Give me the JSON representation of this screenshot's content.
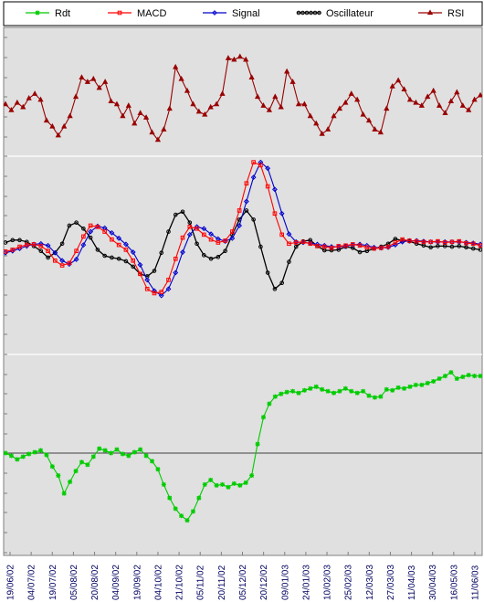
{
  "chart_data": {
    "type": "line",
    "title": "",
    "xlabel": "",
    "ylabel": "",
    "grid": true,
    "legend_position": "top",
    "colors": {
      "Rdt": "#00cc00",
      "MACD": "#ff0000",
      "Signal": "#0000cc",
      "Oscillateur": "#000000",
      "RSI": "#990000",
      "plot_background": "#e0e0e0",
      "tick_label": "#000060"
    },
    "x_tick_labels": [
      "19/06/02",
      "04/07/02",
      "19/07/02",
      "05/08/02",
      "20/08/02",
      "04/09/02",
      "19/09/02",
      "04/10/02",
      "21/10/02",
      "05/11/02",
      "20/11/02",
      "05/12/02",
      "20/12/02",
      "09/01/03",
      "24/01/03",
      "10/02/03",
      "25/02/03",
      "12/03/03",
      "27/03/03",
      "11/04/03",
      "30/04/03",
      "16/05/03",
      "11/06/03"
    ],
    "series": [
      {
        "name": "Rdt",
        "marker": "star",
        "panel": "bottom",
        "values": [
          0.0,
          -0.3,
          -0.7,
          -0.4,
          -0.1,
          0.1,
          0.3,
          -0.2,
          -1.5,
          -2.5,
          -4.5,
          -3.2,
          -2.0,
          -1.0,
          -1.3,
          -0.4,
          0.5,
          0.3,
          0.0,
          0.4,
          -0.1,
          -0.3,
          0.1,
          0.4,
          -0.3,
          -0.9,
          -1.8,
          -3.5,
          -5.0,
          -6.2,
          -7.0,
          -7.5,
          -6.5,
          -5.0,
          -3.5,
          -3.0,
          -3.6,
          -3.5,
          -3.8,
          -3.4,
          -3.6,
          -3.3,
          -2.5,
          1.0,
          4.0,
          5.5,
          6.3,
          6.6,
          6.8,
          6.9,
          6.7,
          7.0,
          7.2,
          7.4,
          7.1,
          6.9,
          6.7,
          6.9,
          7.2,
          6.9,
          6.7,
          6.9,
          6.4,
          6.2,
          6.3,
          7.1,
          7.0,
          7.3,
          7.2,
          7.4,
          7.6,
          7.6,
          7.8,
          8.0,
          8.3,
          8.6,
          9.0,
          8.3,
          8.5,
          8.7,
          8.6,
          8.6
        ]
      },
      {
        "name": "MACD",
        "marker": "square",
        "panel": "middle",
        "values": [
          0.7,
          1.0,
          1.5,
          1.8,
          1.9,
          1.6,
          0.8,
          -0.8,
          -1.6,
          -1.2,
          0.8,
          3.2,
          5.0,
          4.8,
          4.0,
          2.7,
          1.8,
          1.0,
          -0.8,
          -3.0,
          -5.5,
          -6.2,
          -6.0,
          -4.0,
          -0.5,
          3.0,
          4.8,
          4.5,
          3.5,
          2.7,
          2.2,
          2.5,
          4.0,
          7.5,
          12.0,
          15.5,
          15.0,
          11.5,
          7.0,
          3.5,
          2.0,
          2.2,
          2.3,
          2.0,
          1.6,
          1.5,
          1.3,
          1.6,
          1.7,
          1.9,
          1.7,
          1.4,
          1.2,
          1.3,
          1.5,
          2.2,
          2.7,
          2.5,
          2.4,
          2.3,
          2.3,
          2.4,
          2.2,
          2.3,
          2.4,
          2.1,
          2.0,
          1.7
        ]
      },
      {
        "name": "Signal",
        "marker": "diamond",
        "panel": "middle",
        "values": [
          0.5,
          0.8,
          1.2,
          1.6,
          1.9,
          2.0,
          1.7,
          0.5,
          -0.8,
          -1.4,
          -0.6,
          1.8,
          4.0,
          4.9,
          4.6,
          3.8,
          2.9,
          1.9,
          0.6,
          -1.5,
          -4.0,
          -5.8,
          -6.6,
          -5.5,
          -2.8,
          0.6,
          3.5,
          4.8,
          4.5,
          3.6,
          2.8,
          2.4,
          2.9,
          5.0,
          9.0,
          13.0,
          15.5,
          14.5,
          11.0,
          7.0,
          3.6,
          2.3,
          2.2,
          2.1,
          1.9,
          1.7,
          1.5,
          1.5,
          1.6,
          1.8,
          1.9,
          1.7,
          1.4,
          1.3,
          1.4,
          1.8,
          2.3,
          2.5,
          2.5,
          2.4,
          2.3,
          2.3,
          2.3,
          2.3,
          2.3,
          2.2,
          2.1,
          1.9
        ]
      },
      {
        "name": "Oscillateur",
        "marker": "circle",
        "panel": "middle",
        "values": [
          2.2,
          2.6,
          2.6,
          2.3,
          1.6,
          0.8,
          -0.3,
          0.5,
          2.0,
          5.0,
          5.5,
          4.5,
          3.0,
          1.0,
          0.0,
          -0.3,
          -0.5,
          -0.9,
          -1.8,
          -3.0,
          -3.4,
          -2.5,
          0.5,
          4.0,
          6.8,
          7.3,
          5.5,
          2.0,
          0.1,
          -0.5,
          -0.2,
          0.8,
          3.5,
          6.0,
          7.5,
          6.0,
          1.5,
          -2.8,
          -5.5,
          -4.5,
          -1.0,
          1.5,
          2.4,
          2.6,
          1.6,
          0.9,
          0.9,
          1.0,
          1.5,
          1.3,
          0.6,
          0.8,
          1.2,
          1.5,
          2.0,
          2.8,
          2.5,
          2.4,
          2.0,
          1.7,
          1.4,
          1.6,
          1.6,
          1.5,
          1.6,
          1.4,
          1.2,
          1.0
        ]
      },
      {
        "name": "RSI",
        "marker": "triangle",
        "panel": "top",
        "values": [
          55,
          51,
          56,
          53,
          59,
          62,
          58,
          44,
          40,
          34,
          40,
          47,
          60,
          73,
          70,
          72,
          66,
          70,
          57,
          55,
          47,
          54,
          42,
          49,
          46,
          36,
          31,
          38,
          52,
          80,
          72,
          64,
          55,
          50,
          48,
          53,
          55,
          62,
          86,
          85,
          87,
          85,
          73,
          60,
          54,
          51,
          60,
          53,
          77,
          70,
          55,
          55,
          47,
          42,
          35,
          38,
          47,
          52,
          56,
          62,
          58,
          48,
          44,
          38,
          36,
          52,
          67,
          71,
          65,
          58,
          56,
          54,
          60,
          64,
          54,
          49,
          57,
          63,
          54,
          51,
          58,
          61
        ]
      }
    ]
  }
}
